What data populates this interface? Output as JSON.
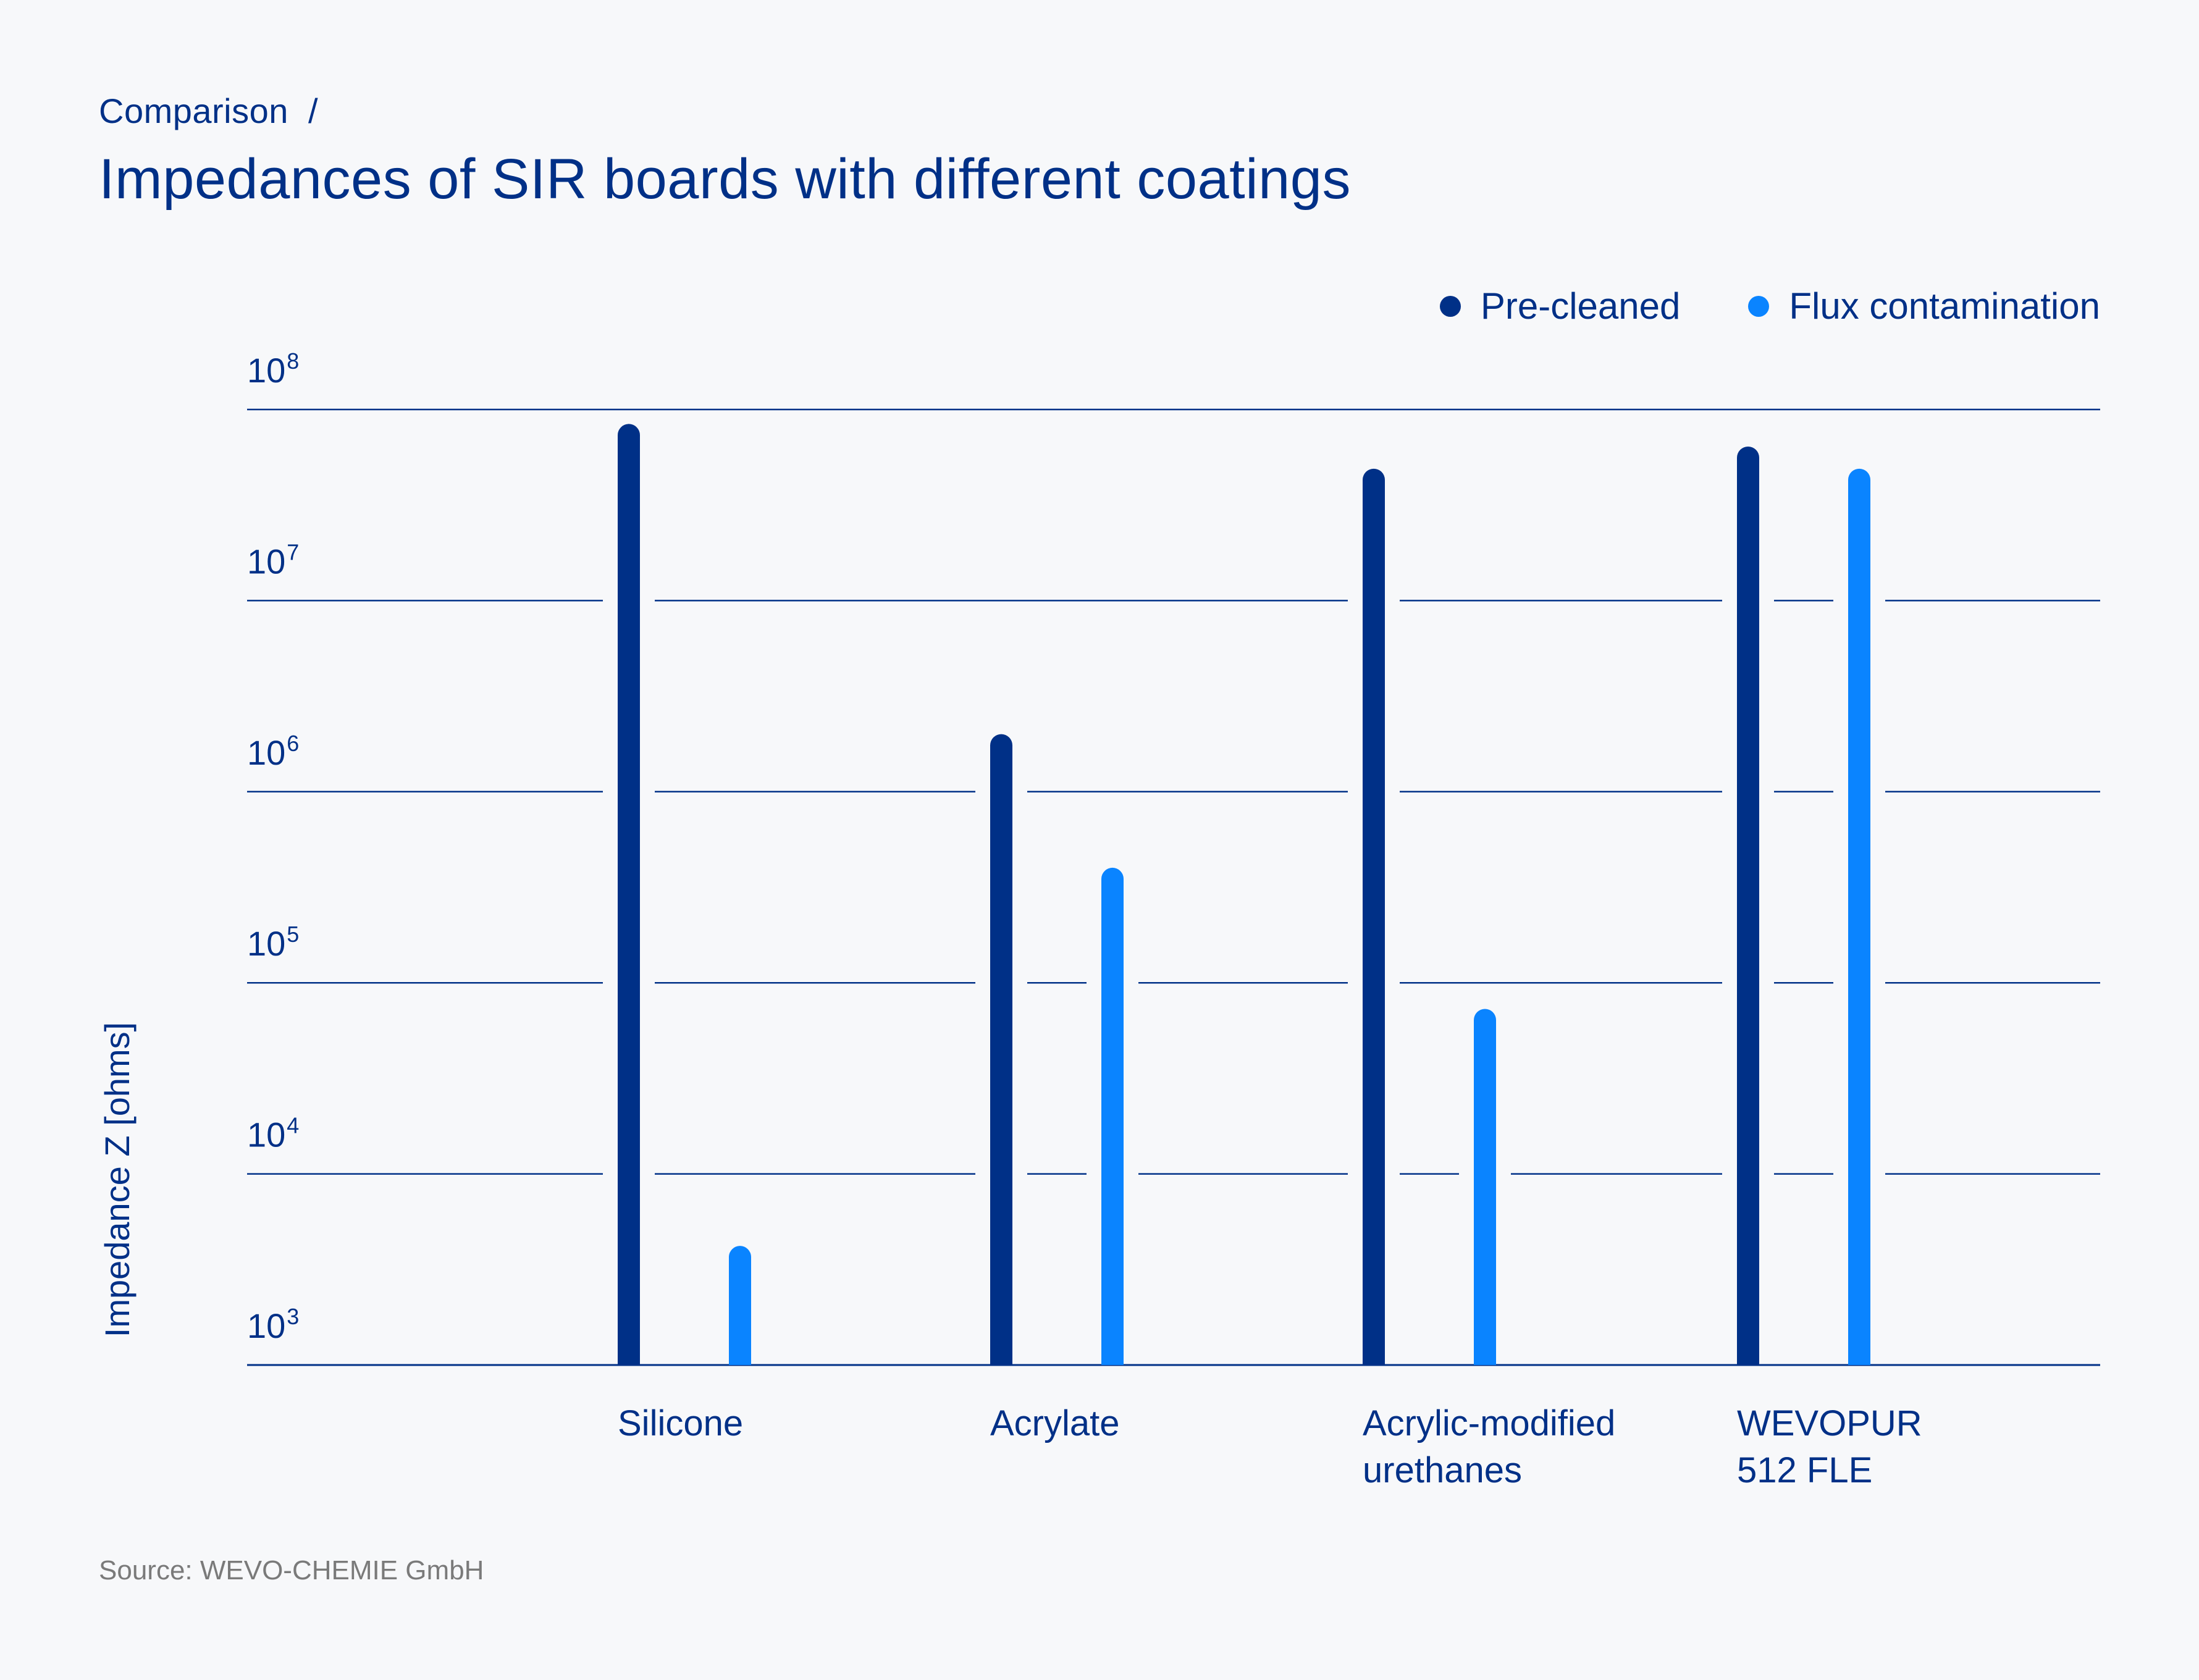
{
  "header": {
    "eyebrow": "Comparison  /",
    "title": "Impedances of SIR boards with different coatings"
  },
  "legend": [
    {
      "label": "Pre-cleaned",
      "color": "#003087"
    },
    {
      "label": "Flux contamination",
      "color": "#0A84FF"
    }
  ],
  "source": "Source: WEVO-CHEMIE GmbH",
  "chart_data": {
    "type": "bar",
    "title": "Impedances of SIR boards with different coatings",
    "xlabel": "",
    "ylabel": "Impedance Z [ohms]",
    "yscale": "log",
    "ylim": [
      1000,
      100000000
    ],
    "ytick_labels": [
      {
        "base": "10",
        "exp": "8",
        "value": 100000000
      },
      {
        "base": "10",
        "exp": "7",
        "value": 10000000
      },
      {
        "base": "10",
        "exp": "6",
        "value": 1000000
      },
      {
        "base": "10",
        "exp": "5",
        "value": 100000
      },
      {
        "base": "10",
        "exp": "4",
        "value": 10000
      },
      {
        "base": "10",
        "exp": "3",
        "value": 1000
      }
    ],
    "grid": true,
    "legend_position": "top-right",
    "categories": [
      [
        "Silicone"
      ],
      [
        "Acrylate"
      ],
      [
        "Acrylic-modified",
        "urethanes"
      ],
      [
        "WEVOPUR",
        "512 FLE"
      ]
    ],
    "series": [
      {
        "name": "Pre-cleaned",
        "color": "#003087",
        "values": [
          84000000,
          2000000,
          49000000,
          64000000
        ]
      },
      {
        "name": "Flux contamination",
        "color": "#0A84FF",
        "values": [
          4200,
          400000,
          73000,
          49000000
        ]
      }
    ]
  }
}
